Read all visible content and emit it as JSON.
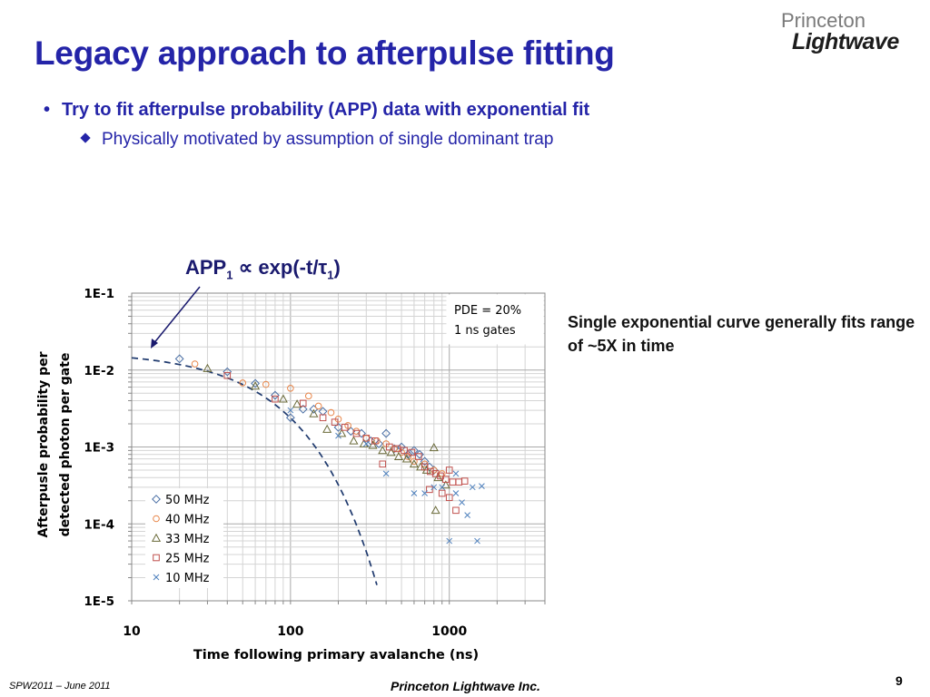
{
  "slide": {
    "title": "Legacy approach to afterpulse fitting",
    "logo_top": "Princeton",
    "logo_bottom": "Lightwave",
    "bullet1": "Try to fit afterpulse probability (APP) data with exponential fit",
    "bullet2": "Physically motivated by assumption of single dominant trap",
    "annotation_app": "APP",
    "annotation_sub1": "1",
    "annotation_mid": " ∝ exp(-t/τ",
    "annotation_sub2": "1",
    "annotation_end": ")",
    "side_note": "Single exponential curve generally fits range of ~5X in time",
    "footer_left": "SPW2011 – June 2011",
    "footer_center": "Princeton Lightwave Inc.",
    "page_number": "9"
  },
  "chart_data": {
    "type": "scatter",
    "xlabel": "Time following  primary avalanche (ns)",
    "ylabel_line1": "Afterpusle probability per",
    "ylabel_line2": "detected photon  per gate",
    "x_scale": "log",
    "y_scale": "log",
    "xlim": [
      10,
      4000
    ],
    "ylim": [
      1e-05,
      0.1
    ],
    "x_ticks": [
      "10",
      "100",
      "1000"
    ],
    "y_ticks": [
      "1E-1",
      "1E-2",
      "1E-3",
      "1E-4",
      "1E-5"
    ],
    "grid": true,
    "info_box": [
      "PDE = 20%",
      "1 ns gates"
    ],
    "legend_position": "bottom-left",
    "series": [
      {
        "name": "50 MHz",
        "marker": "diamond",
        "color": "#4a6fa5",
        "points": [
          [
            20,
            0.014
          ],
          [
            40,
            0.0095
          ],
          [
            60,
            0.0067
          ],
          [
            80,
            0.0047
          ],
          [
            100,
            0.0024
          ],
          [
            120,
            0.0031
          ],
          [
            140,
            0.0031
          ],
          [
            160,
            0.0029
          ],
          [
            200,
            0.0018
          ],
          [
            240,
            0.0016
          ],
          [
            280,
            0.0015
          ],
          [
            320,
            0.0012
          ],
          [
            360,
            0.0011
          ],
          [
            400,
            0.0015
          ],
          [
            450,
            0.00095
          ],
          [
            500,
            0.001
          ],
          [
            550,
            0.0008
          ],
          [
            600,
            0.0009
          ],
          [
            650,
            0.0008
          ],
          [
            700,
            0.00065
          ],
          [
            750,
            0.00055
          ],
          [
            800,
            0.0005
          ]
        ]
      },
      {
        "name": "40 MHz",
        "marker": "circle",
        "color": "#e8864a",
        "points": [
          [
            25,
            0.012
          ],
          [
            50,
            0.0068
          ],
          [
            70,
            0.0065
          ],
          [
            100,
            0.0058
          ],
          [
            130,
            0.0046
          ],
          [
            150,
            0.0034
          ],
          [
            180,
            0.0028
          ],
          [
            200,
            0.0023
          ],
          [
            230,
            0.0019
          ],
          [
            260,
            0.0016
          ],
          [
            300,
            0.0013
          ],
          [
            350,
            0.0012
          ],
          [
            400,
            0.0011
          ],
          [
            450,
            0.00095
          ],
          [
            500,
            0.00085
          ],
          [
            550,
            0.00075
          ],
          [
            600,
            0.00065
          ],
          [
            700,
            0.0006
          ],
          [
            800,
            0.0005
          ],
          [
            900,
            0.00045
          ]
        ]
      },
      {
        "name": "33 MHz",
        "marker": "triangle",
        "color": "#6b6b3a",
        "points": [
          [
            30,
            0.0105
          ],
          [
            60,
            0.0062
          ],
          [
            90,
            0.0042
          ],
          [
            110,
            0.0036
          ],
          [
            140,
            0.0027
          ],
          [
            170,
            0.0017
          ],
          [
            210,
            0.0015
          ],
          [
            250,
            0.0012
          ],
          [
            290,
            0.0011
          ],
          [
            330,
            0.00105
          ],
          [
            380,
            0.0009
          ],
          [
            430,
            0.00085
          ],
          [
            480,
            0.00075
          ],
          [
            540,
            0.0007
          ],
          [
            600,
            0.0006
          ],
          [
            660,
            0.00055
          ],
          [
            720,
            0.0005
          ],
          [
            800,
            0.00098
          ],
          [
            850,
            0.0004
          ],
          [
            950,
            0.00032
          ],
          [
            820,
            0.00015
          ]
        ]
      },
      {
        "name": "25 MHz",
        "marker": "square",
        "color": "#c0504d",
        "points": [
          [
            40,
            0.0085
          ],
          [
            80,
            0.0042
          ],
          [
            120,
            0.0037
          ],
          [
            160,
            0.0024
          ],
          [
            190,
            0.0021
          ],
          [
            220,
            0.0018
          ],
          [
            260,
            0.0015
          ],
          [
            300,
            0.0013
          ],
          [
            340,
            0.0012
          ],
          [
            380,
            0.0006
          ],
          [
            420,
            0.001
          ],
          [
            470,
            0.00095
          ],
          [
            520,
            0.0009
          ],
          [
            580,
            0.00085
          ],
          [
            640,
            0.00075
          ],
          [
            700,
            0.00055
          ],
          [
            760,
            0.00048
          ],
          [
            820,
            0.00045
          ],
          [
            880,
            0.00042
          ],
          [
            950,
            0.00038
          ],
          [
            1000,
            0.0005
          ],
          [
            1050,
            0.00035
          ],
          [
            1150,
            0.00035
          ],
          [
            1250,
            0.00036
          ],
          [
            1100,
            0.00015
          ],
          [
            900,
            0.00025
          ],
          [
            750,
            0.00028
          ],
          [
            1000,
            0.00022
          ]
        ]
      },
      {
        "name": "10 MHz",
        "marker": "x",
        "color": "#4f81bd",
        "points": [
          [
            100,
            0.003
          ],
          [
            200,
            0.0014
          ],
          [
            300,
            0.0011
          ],
          [
            400,
            0.00045
          ],
          [
            600,
            0.00025
          ],
          [
            700,
            0.00025
          ],
          [
            800,
            0.0003
          ],
          [
            900,
            0.0003
          ],
          [
            1000,
            6e-05
          ],
          [
            1100,
            0.00025
          ],
          [
            1200,
            0.00019
          ],
          [
            1300,
            0.00013
          ],
          [
            1400,
            0.0003
          ],
          [
            1500,
            6e-05
          ],
          [
            1600,
            0.00031
          ],
          [
            1100,
            0.00045
          ]
        ]
      }
    ],
    "fit_curve": {
      "label": "APP1 ∝ exp(-t/τ1)",
      "style": "dashed",
      "color": "#1f3a6e",
      "model": "A*exp(-t/tau)",
      "A": 0.0176,
      "tau": 50,
      "t_range": [
        10,
        350
      ]
    }
  }
}
